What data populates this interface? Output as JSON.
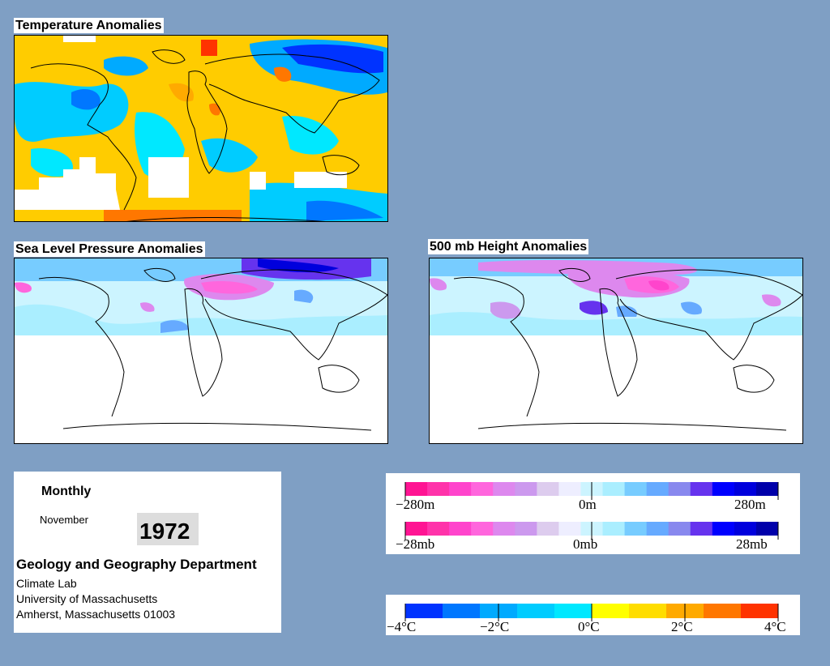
{
  "maps": {
    "temperature": {
      "title": "Temperature Anomalies"
    },
    "slp": {
      "title": "Sea Level Pressure Anomalies"
    },
    "height500": {
      "title": "500 mb Height Anomalies"
    }
  },
  "info": {
    "period": "Monthly",
    "month": "November",
    "year": "1972",
    "department": "Geology and Geography Department",
    "address_lines": [
      "Climate Lab",
      "University of Massachusetts",
      "Amherst, Massachusetts 01003"
    ]
  },
  "legends": {
    "height": {
      "labels": [
        "−280m",
        "0m",
        "280m"
      ]
    },
    "pressure": {
      "labels": [
        "−28mb",
        "0mb",
        "28mb"
      ]
    },
    "temperature": {
      "labels": [
        "−4°C",
        "−2°C",
        "0°C",
        "2°C",
        "4°C"
      ]
    }
  },
  "palettes": {
    "pressure_height": [
      "#ff1493",
      "#ff33aa",
      "#ff44cc",
      "#ff66dd",
      "#dd88ee",
      "#cc99ee",
      "#ddccee",
      "#eeeeff",
      "#ccf4ff",
      "#aaeeff",
      "#77ccff",
      "#66aaff",
      "#8888ee",
      "#6633ee",
      "#0000ff",
      "#0000dd",
      "#0000aa"
    ],
    "temperature": [
      "#0033ff",
      "#0077ff",
      "#00aaff",
      "#00ccff",
      "#00e8ff",
      "#ffff00",
      "#ffdd00",
      "#ffaa00",
      "#ff7700",
      "#ff3300"
    ]
  }
}
